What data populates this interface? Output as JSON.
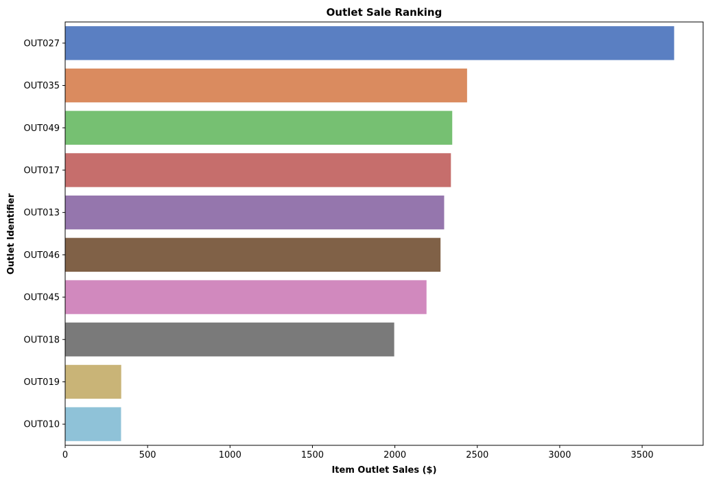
{
  "chart_data": {
    "type": "bar",
    "orientation": "horizontal",
    "title": "Outlet Sale Ranking",
    "xlabel": "Item Outlet Sales ($)",
    "ylabel": "Outlet Identifier",
    "xlim": [
      0,
      3870
    ],
    "xticks": [
      0,
      500,
      1000,
      1500,
      2000,
      2500,
      3000,
      3500
    ],
    "grid": false,
    "categories": [
      "OUT027",
      "OUT035",
      "OUT049",
      "OUT017",
      "OUT013",
      "OUT046",
      "OUT045",
      "OUT018",
      "OUT019",
      "OUT010"
    ],
    "values": [
      3694,
      2438,
      2348,
      2340,
      2299,
      2277,
      2192,
      1996,
      340,
      339
    ],
    "colors": [
      "#5a7fc2",
      "#da8b5f",
      "#76c072",
      "#c66e6c",
      "#9576ad",
      "#806147",
      "#d189be",
      "#7a7a7a",
      "#c9b477",
      "#8fc2d8"
    ]
  }
}
